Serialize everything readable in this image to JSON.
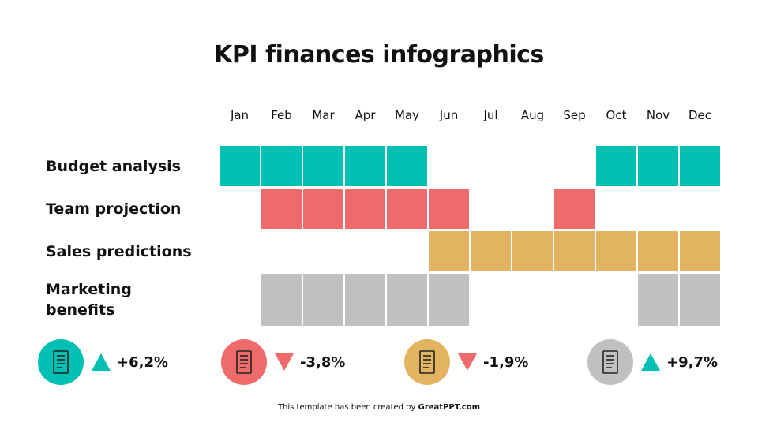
{
  "title": "KPI finances infographics",
  "months": [
    "Jan",
    "Feb",
    "Mar",
    "Apr",
    "May",
    "Jun",
    "Jul",
    "Aug",
    "Sep",
    "Oct",
    "Nov",
    "Dec"
  ],
  "rows": [
    {
      "label": "Budget analysis",
      "color": "#00BFB3",
      "active": [
        1,
        1,
        1,
        1,
        1,
        0,
        0,
        0,
        0,
        1,
        1,
        1
      ]
    },
    {
      "label": "Team projection",
      "color": "#EF6B6B",
      "active": [
        0,
        1,
        1,
        1,
        1,
        1,
        0,
        0,
        1,
        0,
        0,
        0
      ]
    },
    {
      "label": "Sales predictions",
      "color": "#E2B360",
      "active": [
        0,
        0,
        0,
        0,
        0,
        1,
        1,
        1,
        1,
        1,
        1,
        1
      ]
    },
    {
      "label": "Marketing benefits",
      "color": "#C0C0C2",
      "active": [
        0,
        1,
        1,
        1,
        1,
        1,
        0,
        0,
        0,
        0,
        1,
        1
      ]
    }
  ],
  "kpis": [
    {
      "icon": "report-document-icon",
      "color": "#00BFB3",
      "trend": "up",
      "value": "+6,2%"
    },
    {
      "icon": "calculator-coins-icon",
      "color": "#EF6B6B",
      "trend": "down",
      "value": "-3,8%"
    },
    {
      "icon": "businessman-briefcase-icon",
      "color": "#E2B360",
      "trend": "down",
      "value": "-1,9%"
    },
    {
      "icon": "shopping-cart-growth-icon",
      "color": "#C0C0C2",
      "trend": "up",
      "value": "+9,7%"
    }
  ],
  "footer": {
    "prefix": "This template has been created by ",
    "brand": "GreatPPT.com"
  }
}
